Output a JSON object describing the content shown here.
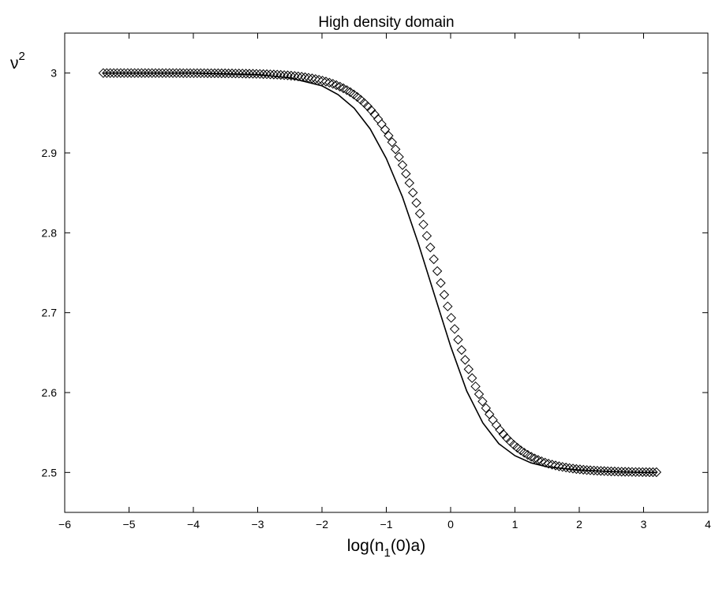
{
  "chart_data": {
    "type": "line",
    "title": "High density domain",
    "xlabel": {
      "pre": "log(n",
      "sub": "1",
      "post": "(0)a)"
    },
    "ylabel": {
      "base": "ν",
      "sup": "2"
    },
    "xlim": [
      -6,
      4
    ],
    "ylim": [
      2.45,
      3.05
    ],
    "xticks": [
      -6,
      -5,
      -4,
      -3,
      -2,
      -1,
      0,
      1,
      2,
      3,
      4
    ],
    "yticks": [
      2.5,
      2.6,
      2.7,
      2.8,
      2.9,
      3
    ],
    "xtick_labels": [
      "−6",
      "−5",
      "−4",
      "−3",
      "−2",
      "−1",
      "0",
      "1",
      "2",
      "3",
      "4"
    ],
    "ytick_labels": [
      "2.5",
      "2.6",
      "2.7",
      "2.8",
      "2.9",
      "3"
    ],
    "grid": false,
    "series": [
      {
        "style": "solid-line",
        "color": "#000000",
        "x": [
          -5.4,
          -4.0,
          -3.0,
          -2.5,
          -2.0,
          -1.75,
          -1.5,
          -1.25,
          -1.0,
          -0.75,
          -0.5,
          -0.25,
          0.0,
          0.25,
          0.5,
          0.75,
          1.0,
          1.25,
          1.5,
          2.0,
          2.5,
          3.0,
          3.2
        ],
        "y": [
          3.0,
          3.0,
          2.998,
          2.994,
          2.984,
          2.973,
          2.956,
          2.93,
          2.893,
          2.845,
          2.786,
          2.722,
          2.658,
          2.602,
          2.562,
          2.536,
          2.521,
          2.512,
          2.507,
          2.503,
          2.501,
          2.5,
          2.5
        ]
      },
      {
        "style": "diamond-markers",
        "color": "#000000",
        "x_start": -5.4,
        "x_end": 3.2,
        "point_count": 160,
        "curve": "logistic",
        "y_high": 3.0,
        "y_low": 2.5,
        "x_mid": -0.2,
        "steepness": 2.2
      }
    ]
  }
}
